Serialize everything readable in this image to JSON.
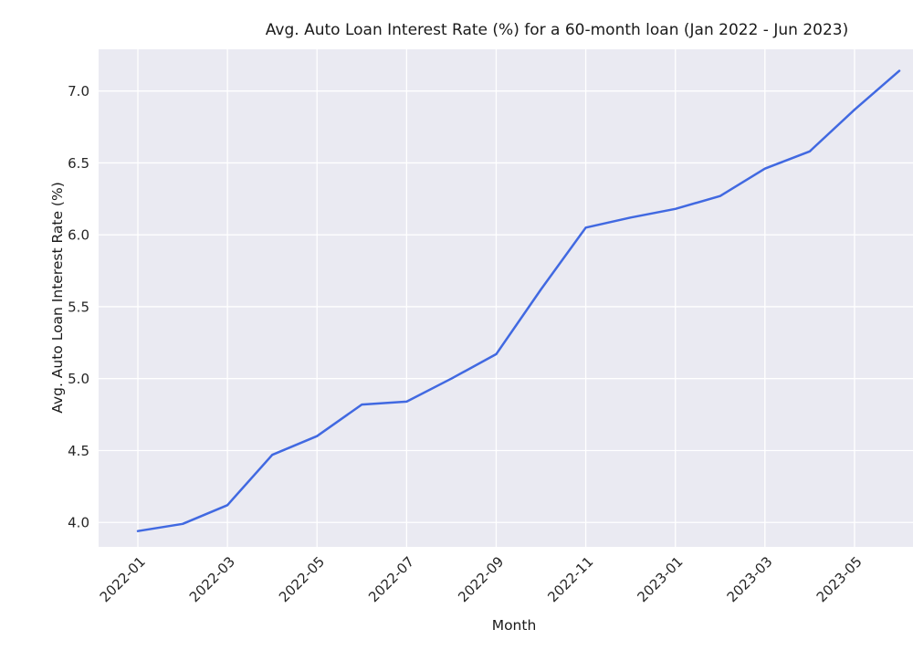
{
  "chart_data": {
    "type": "line",
    "title": "Avg. Auto Loan Interest Rate (%) for a 60-month loan (Jan 2022 - Jun 2023)",
    "xlabel": "Month",
    "ylabel": "Avg. Auto Loan Interest Rate (%)",
    "x": [
      "2022-01",
      "2022-02",
      "2022-03",
      "2022-04",
      "2022-05",
      "2022-06",
      "2022-07",
      "2022-08",
      "2022-09",
      "2022-10",
      "2022-11",
      "2022-12",
      "2023-01",
      "2023-02",
      "2023-03",
      "2023-04",
      "2023-05",
      "2023-06"
    ],
    "series": [
      {
        "name": "avg-auto-loan-interest-rate",
        "values": [
          3.94,
          3.99,
          4.12,
          4.47,
          4.6,
          4.82,
          4.84,
          5.0,
          5.17,
          5.62,
          6.05,
          6.12,
          6.18,
          6.27,
          6.46,
          6.58,
          6.87,
          7.14
        ]
      }
    ],
    "xtick_labels": [
      "2022-01",
      "2022-03",
      "2022-05",
      "2022-07",
      "2022-09",
      "2022-11",
      "2023-01",
      "2023-03",
      "2023-05"
    ],
    "xtick_rotation_deg": 45,
    "ytick_labels": [
      "4.0",
      "4.5",
      "5.0",
      "5.5",
      "6.0",
      "6.5",
      "7.0"
    ],
    "ylim": [
      3.83,
      7.29
    ],
    "grid": true,
    "legend": "none",
    "colors": {
      "line": "#4169e1",
      "plot_background": "#eaeaf2",
      "gridline": "#ffffff",
      "text": "#262626"
    }
  }
}
